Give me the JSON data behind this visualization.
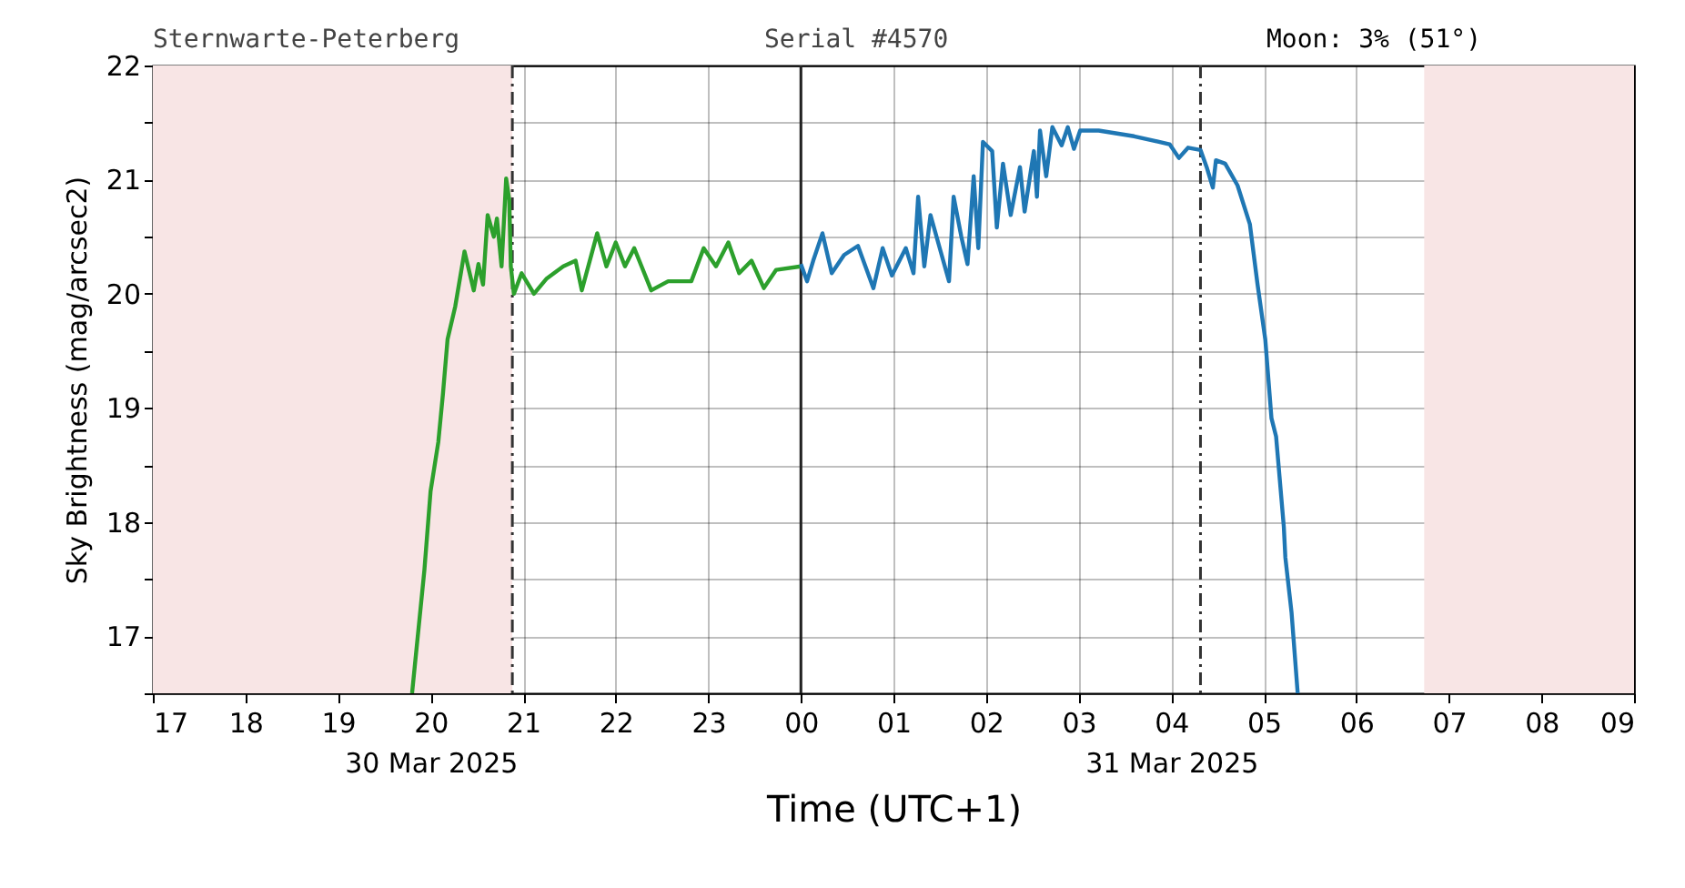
{
  "chart_data": {
    "type": "line",
    "title": "Sternwarte-Peterberg",
    "subtitle": "Serial #4570",
    "annotations": [
      "Moon: 3% (51°)"
    ],
    "xlabel": "Time (UTC+1)",
    "ylabel": "Sky Brightness (mag/arcsec2)",
    "xlim": [
      "2025-03-30T17:00",
      "2025-03-31T09:00"
    ],
    "ylim": [
      16.5,
      22
    ],
    "xticks": [
      {
        "value": "2025-03-30T17:00",
        "label": "17"
      },
      {
        "value": "2025-03-30T18:00",
        "label": "18"
      },
      {
        "value": "2025-03-30T19:00",
        "label": "19"
      },
      {
        "value": "2025-03-30T20:00",
        "label": "20\n30 Mar 2025"
      },
      {
        "value": "2025-03-30T21:00",
        "label": "21"
      },
      {
        "value": "2025-03-30T22:00",
        "label": "22"
      },
      {
        "value": "2025-03-30T23:00",
        "label": "23"
      },
      {
        "value": "2025-03-31T00:00",
        "label": "00"
      },
      {
        "value": "2025-03-31T01:00",
        "label": "01"
      },
      {
        "value": "2025-03-31T02:00",
        "label": "02"
      },
      {
        "value": "2025-03-31T03:00",
        "label": "03"
      },
      {
        "value": "2025-03-31T04:00",
        "label": "04\n31 Mar 2025"
      },
      {
        "value": "2025-03-31T05:00",
        "label": "05"
      },
      {
        "value": "2025-03-31T06:00",
        "label": "06"
      },
      {
        "value": "2025-03-31T07:00",
        "label": "07"
      },
      {
        "value": "2025-03-31T08:00",
        "label": "08"
      },
      {
        "value": "2025-03-31T09:00",
        "label": "09"
      }
    ],
    "yticks": [
      {
        "value": 16.5,
        "label": null
      },
      17,
      {
        "value": 17.5,
        "label": null
      },
      18,
      {
        "value": 18.5,
        "label": null
      },
      19,
      {
        "value": 19.5,
        "label": null
      },
      20,
      {
        "value": 20.5,
        "label": null
      },
      21,
      {
        "value": 21.5,
        "label": null
      },
      22
    ],
    "grid": true,
    "bands": [
      {
        "axis": "x",
        "from": "2025-03-30T17:00",
        "to": "2025-03-30T20:53",
        "label": null,
        "color": "#f8e5e5"
      },
      {
        "axis": "x",
        "from": "2025-03-31T06:44",
        "to": "2025-03-31T09:00",
        "label": null,
        "color": "#f8e5e5"
      }
    ],
    "ref_lines": [
      {
        "axis": "x",
        "value": "2025-03-30T20:53",
        "label": null,
        "color": "#333333",
        "line_style": "dashdot"
      },
      {
        "axis": "x",
        "value": "2025-03-31T00:00",
        "label": null,
        "color": "#222222",
        "line_style": "solid"
      },
      {
        "axis": "x",
        "value": "2025-03-31T04:19",
        "label": null,
        "color": "#333333",
        "line_style": "dashdot"
      }
    ],
    "series": [
      {
        "color": "#2ca02c",
        "x": [
          "2025-03-30T19:48",
          "2025-03-30T19:56",
          "2025-03-30T20:00",
          "2025-03-30T20:05",
          "2025-03-30T20:08",
          "2025-03-30T20:11",
          "2025-03-30T20:16",
          "2025-03-30T20:22",
          "2025-03-30T20:28",
          "2025-03-30T20:31",
          "2025-03-30T20:34",
          "2025-03-30T20:37",
          "2025-03-30T20:41",
          "2025-03-30T20:43",
          "2025-03-30T20:46",
          "2025-03-30T20:49",
          "2025-03-30T20:51",
          "2025-03-30T20:52",
          "2025-03-30T20:54",
          "2025-03-30T20:59",
          "2025-03-30T21:07",
          "2025-03-30T21:15",
          "2025-03-30T21:26",
          "2025-03-30T21:34",
          "2025-03-30T21:38",
          "2025-03-30T21:48",
          "2025-03-30T21:54",
          "2025-03-30T22:00",
          "2025-03-30T22:06",
          "2025-03-30T22:12",
          "2025-03-30T22:23",
          "2025-03-30T22:34",
          "2025-03-30T22:49",
          "2025-03-30T22:57",
          "2025-03-30T23:05",
          "2025-03-30T23:13",
          "2025-03-30T23:20",
          "2025-03-30T23:28",
          "2025-03-30T23:36",
          "2025-03-30T23:44",
          "2025-03-31T00:00"
        ],
        "values": [
          16.5,
          17.58,
          18.27,
          18.7,
          19.12,
          19.6,
          19.89,
          20.37,
          20.03,
          20.26,
          20.08,
          20.69,
          20.5,
          20.66,
          20.24,
          21.01,
          20.82,
          20.24,
          20.0,
          20.18,
          20.0,
          20.13,
          20.24,
          20.29,
          20.03,
          20.53,
          20.24,
          20.45,
          20.24,
          20.4,
          20.03,
          20.11,
          20.11,
          20.4,
          20.24,
          20.45,
          20.18,
          20.29,
          20.05,
          20.21,
          20.24
        ]
      },
      {
        "color": "#1f77b4",
        "x": [
          "2025-03-31T00:00",
          "2025-03-31T00:04",
          "2025-03-31T00:08",
          "2025-03-31T00:14",
          "2025-03-31T00:20",
          "2025-03-31T00:28",
          "2025-03-31T00:37",
          "2025-03-31T00:47",
          "2025-03-31T00:53",
          "2025-03-31T00:59",
          "2025-03-31T01:08",
          "2025-03-31T01:13",
          "2025-03-31T01:16",
          "2025-03-31T01:20",
          "2025-03-31T01:24",
          "2025-03-31T01:30",
          "2025-03-31T01:36",
          "2025-03-31T01:39",
          "2025-03-31T01:44",
          "2025-03-31T01:48",
          "2025-03-31T01:52",
          "2025-03-31T01:55",
          "2025-03-31T01:58",
          "2025-03-31T02:04",
          "2025-03-31T02:07",
          "2025-03-31T02:11",
          "2025-03-31T02:16",
          "2025-03-31T02:22",
          "2025-03-31T02:25",
          "2025-03-31T02:31",
          "2025-03-31T02:33",
          "2025-03-31T02:35",
          "2025-03-31T02:39",
          "2025-03-31T02:43",
          "2025-03-31T02:49",
          "2025-03-31T02:53",
          "2025-03-31T02:57",
          "2025-03-31T03:01",
          "2025-03-31T03:13",
          "2025-03-31T03:36",
          "2025-03-31T03:59",
          "2025-03-31T04:05",
          "2025-03-31T04:11",
          "2025-03-31T04:19",
          "2025-03-31T04:23",
          "2025-03-31T04:27",
          "2025-03-31T04:29",
          "2025-03-31T04:35",
          "2025-03-31T04:43",
          "2025-03-31T04:51",
          "2025-03-31T04:56",
          "2025-03-31T05:01",
          "2025-03-31T05:05",
          "2025-03-31T05:08",
          "2025-03-31T05:13",
          "2025-03-31T05:14",
          "2025-03-31T05:18",
          "2025-03-31T05:22"
        ],
        "values": [
          20.26,
          20.11,
          20.29,
          20.53,
          20.18,
          20.34,
          20.42,
          20.05,
          20.4,
          20.16,
          20.4,
          20.18,
          20.85,
          20.24,
          20.69,
          20.4,
          20.11,
          20.85,
          20.5,
          20.26,
          21.03,
          20.4,
          21.33,
          21.25,
          20.58,
          21.14,
          20.69,
          21.11,
          20.72,
          21.25,
          20.85,
          21.43,
          21.03,
          21.46,
          21.3,
          21.46,
          21.27,
          21.43,
          21.43,
          21.38,
          21.31,
          21.19,
          21.28,
          21.26,
          21.11,
          20.93,
          21.17,
          21.14,
          20.95,
          20.61,
          20.08,
          19.6,
          18.91,
          18.75,
          17.96,
          17.69,
          17.21,
          16.5
        ]
      }
    ]
  }
}
